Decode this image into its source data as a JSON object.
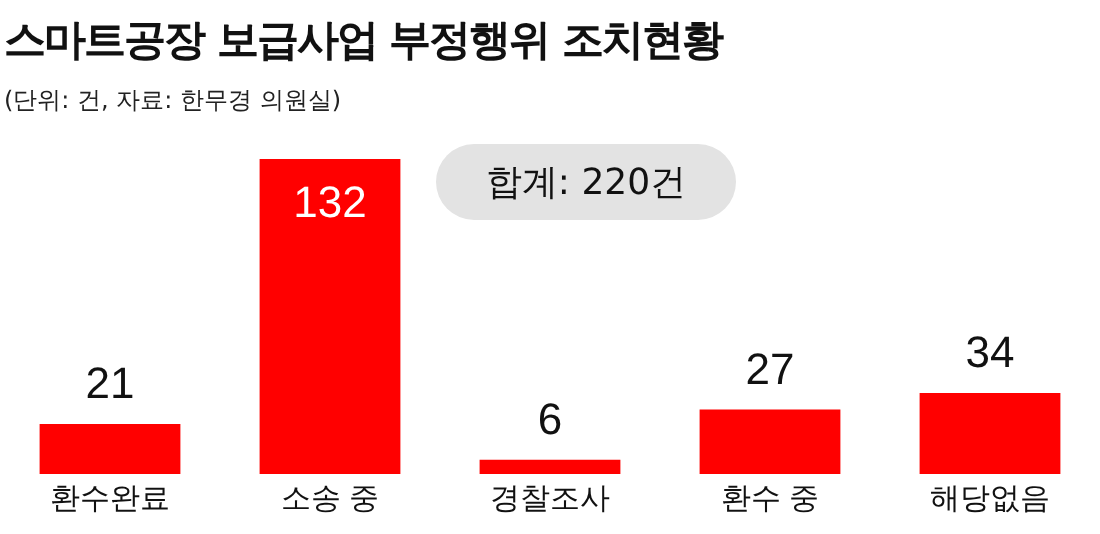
{
  "chart_data": {
    "type": "bar",
    "title": "스마트공장 보급사업 부정행위 조치현황",
    "subtitle": "(단위: 건, 자료: 한무경 의원실)",
    "annotations": [
      "합계: 220건"
    ],
    "categories": [
      "환수완료",
      "소송 중",
      "경찰조사",
      "환수 중",
      "해당없음"
    ],
    "values": [
      21,
      132,
      6,
      27,
      34
    ],
    "color": "#ff0000",
    "data_labels": true,
    "grid": false,
    "legend": false
  }
}
